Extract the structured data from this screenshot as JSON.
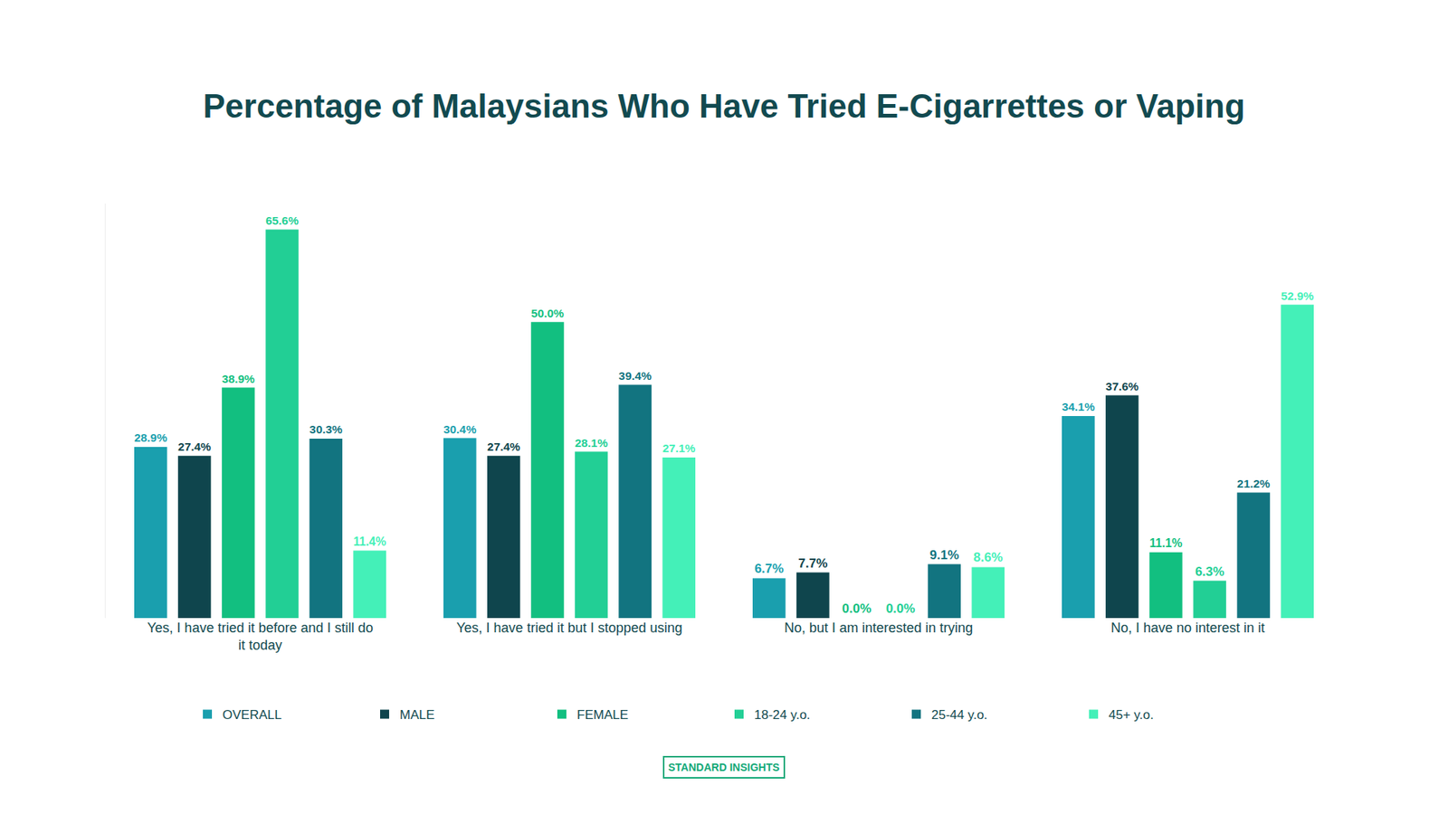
{
  "chart_data": {
    "type": "bar",
    "title": "Percentage of Malaysians Who Have Tried E-Cigarrettes or Vaping",
    "categories": [
      "Yes, I have tried it before and I still do it today",
      "Yes, I have tried it but I stopped using",
      "No, but I am interested in trying",
      "No, I have no interest in it"
    ],
    "series": [
      {
        "name": "OVERALL",
        "color": "#1a9fae",
        "values": [
          28.9,
          30.4,
          6.7,
          34.1
        ],
        "value_labels": [
          "28.9%",
          "30.4%",
          "6.7%",
          "34.1%"
        ]
      },
      {
        "name": "MALE",
        "color": "#0f454d",
        "values": [
          27.4,
          27.4,
          7.7,
          37.6
        ],
        "value_labels": [
          "27.4%",
          "27.4%",
          "7.7%",
          "37.6%"
        ]
      },
      {
        "name": "FEMALE",
        "color": "#12bf80",
        "values": [
          38.9,
          50.0,
          0.0,
          11.1
        ],
        "value_labels": [
          "38.9%",
          "50.0%",
          "0.0%",
          "11.1%"
        ]
      },
      {
        "name": "18-24 y.o.",
        "color": "#22cf95",
        "values": [
          65.6,
          28.1,
          0.0,
          6.3
        ],
        "value_labels": [
          "65.6%",
          "28.1%",
          "0.0%",
          "6.3%"
        ]
      },
      {
        "name": "25-44 y.o.",
        "color": "#127480",
        "values": [
          30.3,
          39.4,
          9.1,
          21.2
        ],
        "value_labels": [
          "30.3%",
          "39.4%",
          "9.1%",
          "21.2%"
        ]
      },
      {
        "name": "45+ y.o.",
        "color": "#44f0b8",
        "values": [
          11.4,
          27.1,
          8.6,
          52.9
        ],
        "value_labels": [
          "11.4%",
          "27.1%",
          "8.6%",
          "52.9%"
        ]
      }
    ],
    "ylim": [
      0,
      70
    ],
    "yticks": [],
    "grid": false,
    "legend": "bottom",
    "data_labels": true,
    "tick_labels": "x",
    "annotations": [
      "STANDARD INSIGHTS"
    ]
  }
}
